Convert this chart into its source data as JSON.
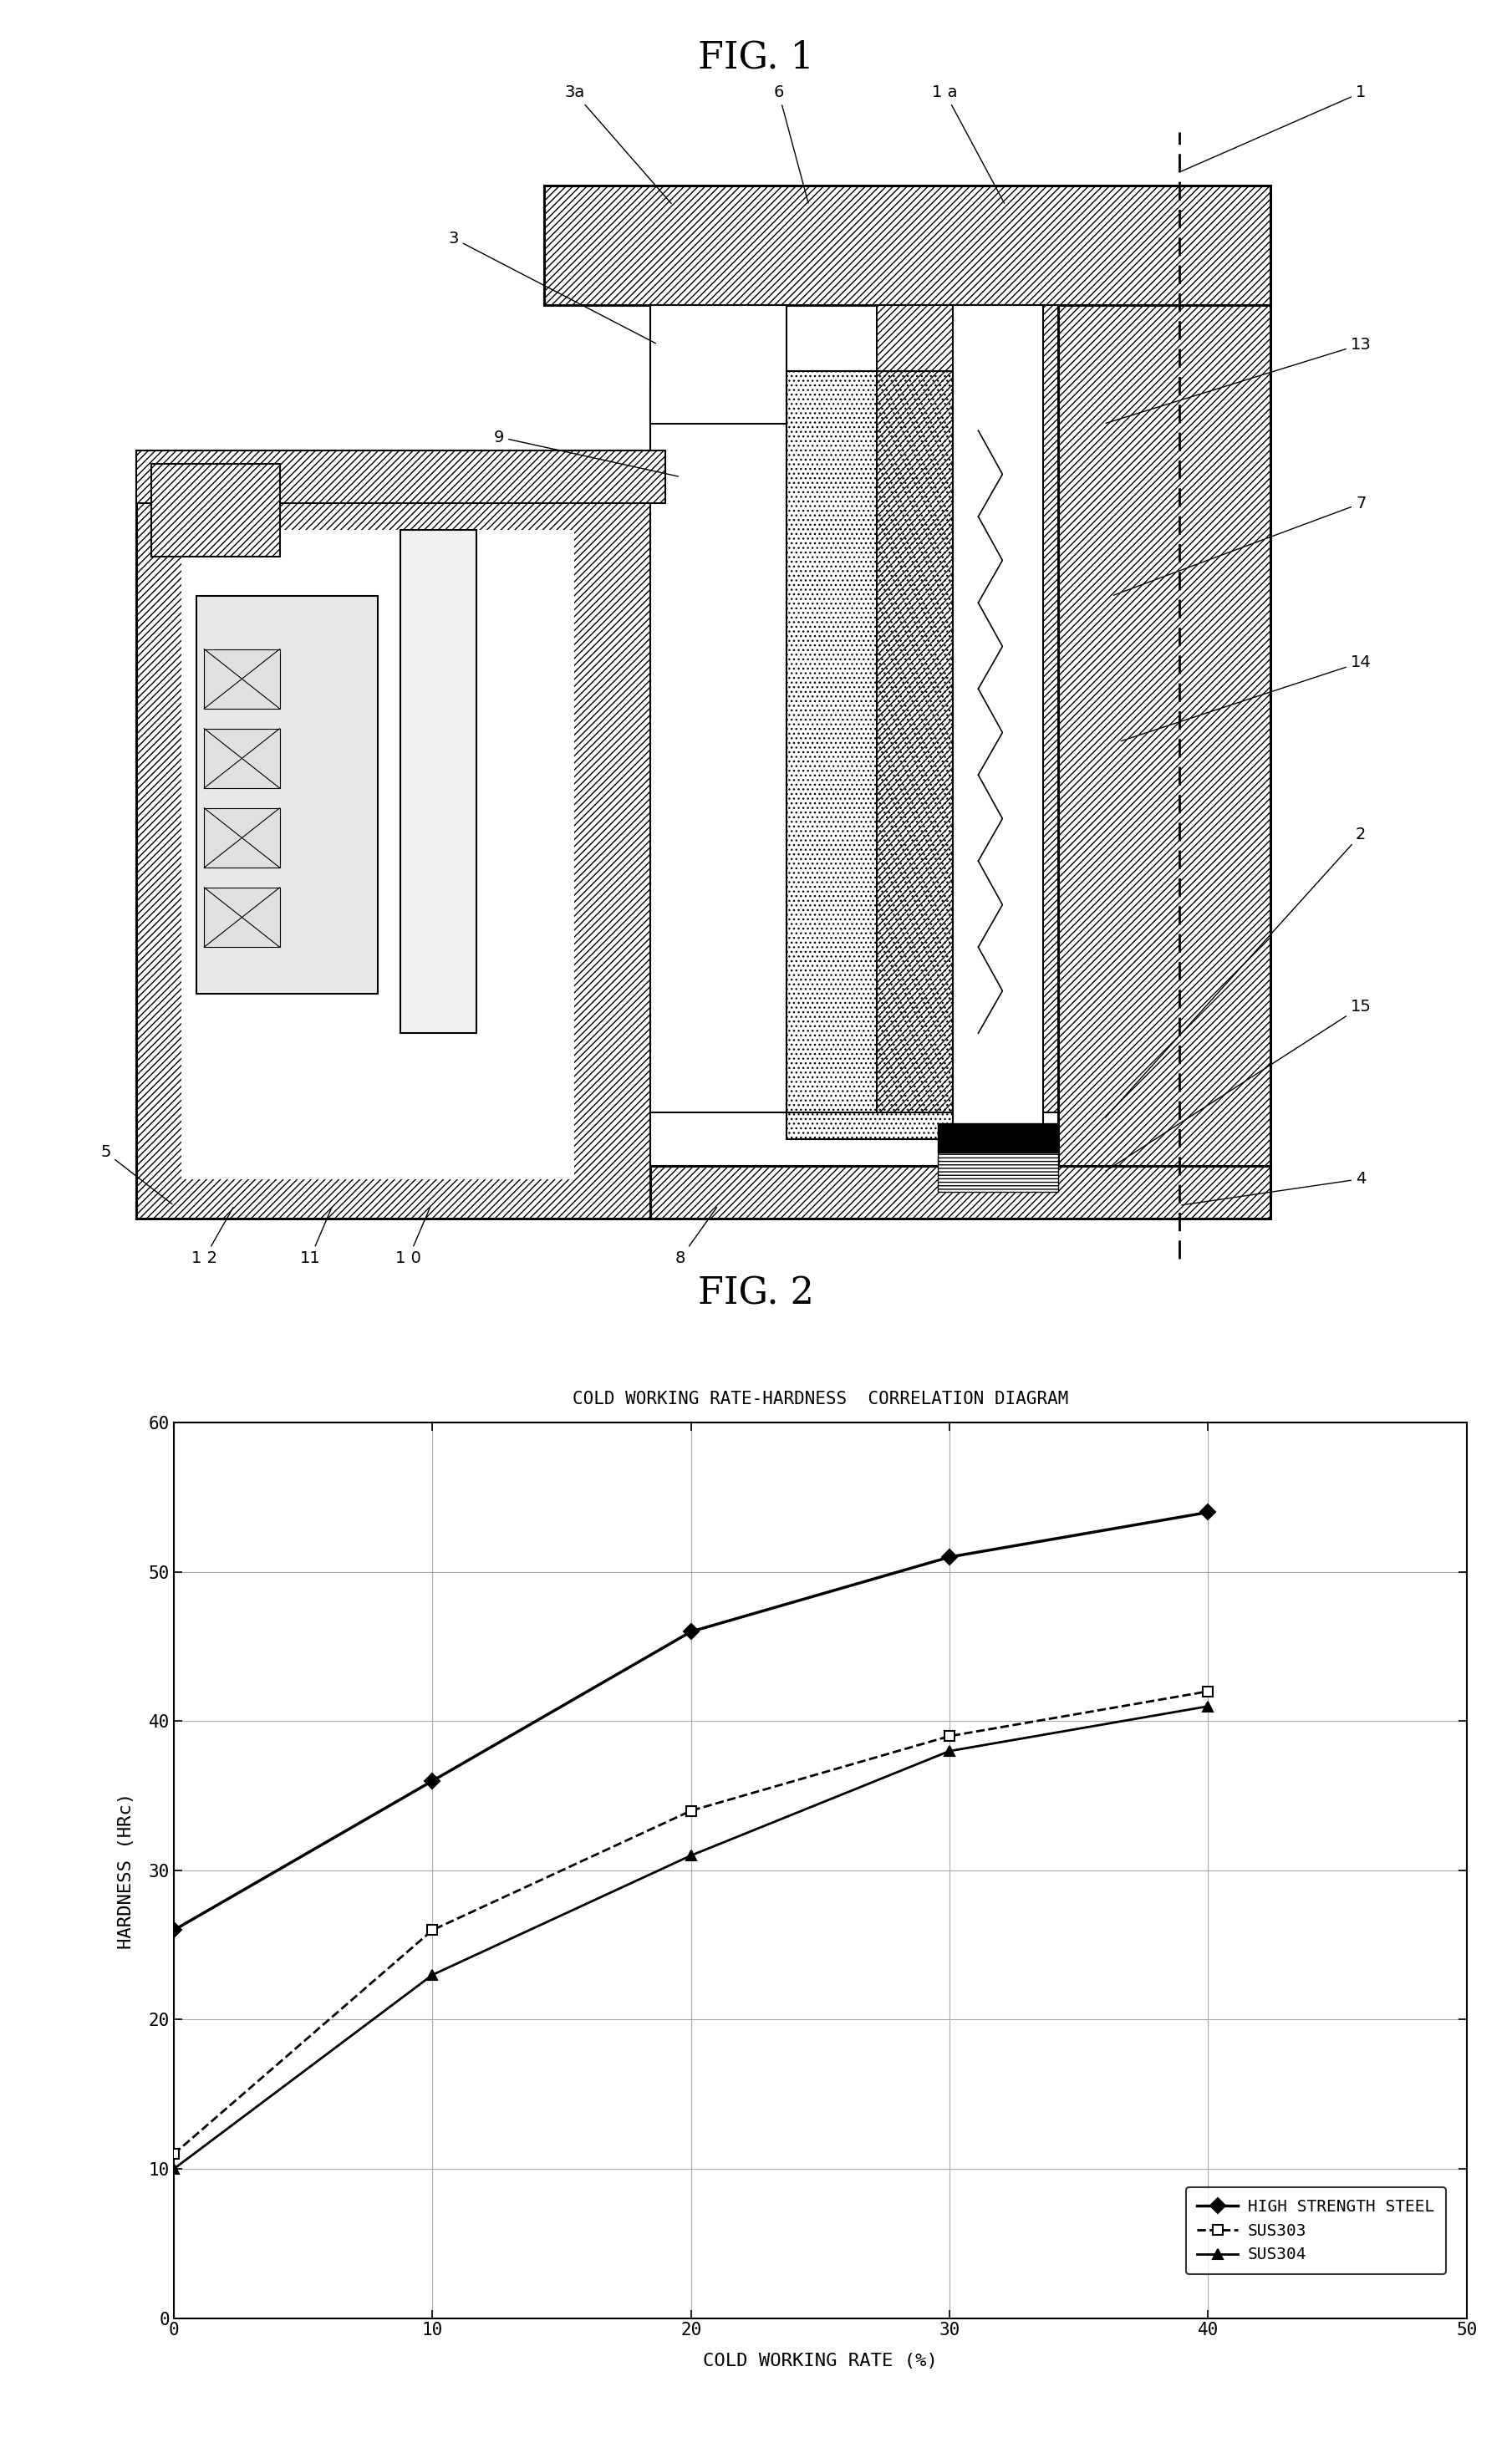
{
  "fig_title_1": "FIG. 1",
  "fig_title_2": "FIG. 2",
  "chart_title": "COLD WORKING RATE-HARDNESS  CORRELATION DIAGRAM",
  "xlabel": "COLD WORKING RATE (%)",
  "ylabel": "HARDNESS (HRc)",
  "xlim": [
    0,
    50
  ],
  "ylim": [
    0,
    60
  ],
  "xticks": [
    0,
    10,
    20,
    30,
    40,
    50
  ],
  "yticks": [
    0,
    10,
    20,
    30,
    40,
    50,
    60
  ],
  "series": [
    {
      "label": "HIGH STRENGTH STEEL",
      "x": [
        0,
        10,
        20,
        30,
        40
      ],
      "y": [
        26,
        36,
        46,
        51,
        54
      ],
      "color": "#000000",
      "linestyle": "solid",
      "linewidth": 2.5,
      "marker": "D",
      "markersize": 9,
      "markerfacecolor": "#000000",
      "markeredgecolor": "#000000",
      "zorder": 4
    },
    {
      "label": "SUS303",
      "x": [
        0,
        10,
        20,
        30,
        40
      ],
      "y": [
        11,
        26,
        34,
        39,
        42
      ],
      "color": "#000000",
      "linestyle": "dashed",
      "linewidth": 2.0,
      "marker": "s",
      "markersize": 9,
      "markerfacecolor": "#ffffff",
      "markeredgecolor": "#000000",
      "zorder": 4
    },
    {
      "label": "SUS304",
      "x": [
        0,
        10,
        20,
        30,
        40
      ],
      "y": [
        10,
        23,
        31,
        38,
        41
      ],
      "color": "#000000",
      "linestyle": "solid",
      "linewidth": 2.0,
      "marker": "^",
      "markersize": 9,
      "markerfacecolor": "#000000",
      "markeredgecolor": "#000000",
      "zorder": 4
    }
  ],
  "background_color": "#ffffff",
  "grid_color": "#aaaaaa"
}
